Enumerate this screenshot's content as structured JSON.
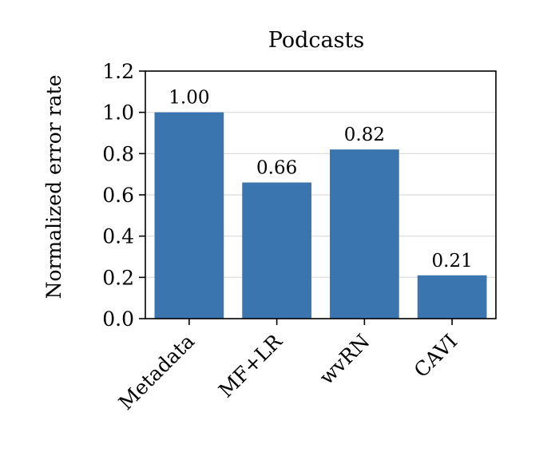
{
  "chart_data": {
    "type": "bar",
    "title": "Podcasts",
    "xlabel": "",
    "ylabel": "Normalized error rate",
    "categories": [
      "Metadata",
      "MF+LR",
      "wvRN",
      "CAVI"
    ],
    "values": [
      1.0,
      0.66,
      0.82,
      0.21
    ],
    "value_labels": [
      "1.00",
      "0.66",
      "0.82",
      "0.21"
    ],
    "ylim": [
      0,
      1.2
    ],
    "yticks": [
      0.0,
      0.2,
      0.4,
      0.6,
      0.8,
      1.0,
      1.2
    ],
    "ytick_labels": [
      "0.0",
      "0.2",
      "0.4",
      "0.6",
      "0.8",
      "1.0",
      "1.2"
    ],
    "grid": "horizontal",
    "bar_color": "#3b75af",
    "grid_color": "#d9d9d9"
  }
}
